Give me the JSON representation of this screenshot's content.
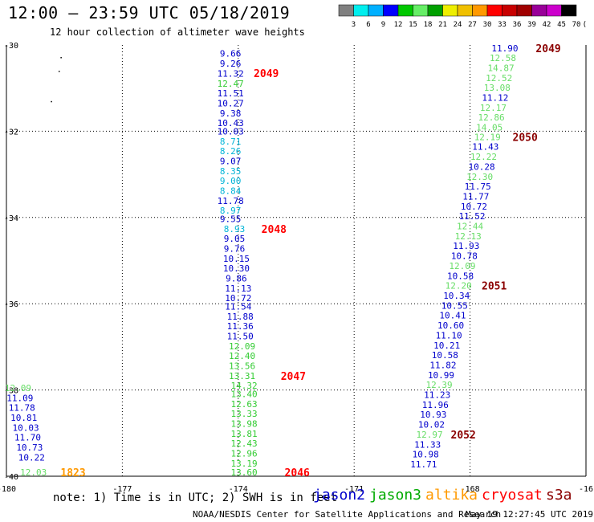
{
  "title": "12:00 – 23:59 UTC 05/18/2019",
  "subtitle": "12 hour collection of altimeter wave heights",
  "scale": {
    "colors": [
      "#808080",
      "#00eeee",
      "#00b0ff",
      "#0000ff",
      "#00c800",
      "#66ee66",
      "#00a000",
      "#eeee00",
      "#f0c000",
      "#ff9900",
      "#ff0000",
      "#c80000",
      "#a00000",
      "#990099",
      "#cc00cc",
      "#000000"
    ],
    "labels": [
      "3",
      "6",
      "9",
      "12",
      "15",
      "18",
      "21",
      "24",
      "27",
      "30",
      "33",
      "36",
      "39",
      "42",
      "45",
      "70",
      "(ft)"
    ]
  },
  "chart_data": {
    "type": "scatter",
    "x_ticks": [
      "-180",
      "-177",
      "-174",
      "-171",
      "-168",
      "-16"
    ],
    "y_ticks": [
      "-30",
      "-32",
      "-34",
      "-36",
      "-38",
      "-40"
    ],
    "xlim": [
      -180,
      -165
    ],
    "ylim": [
      -40,
      -30
    ],
    "grid": true,
    "colors": {
      "jason2": "#0000cc",
      "jason3": "#33cc33",
      "jason3_cyan": "#00b4d8",
      "altika": "#ff9900",
      "cryosat": "#ff0000",
      "s3a": "#8b0000",
      "dark_navy": "#000080"
    },
    "tracks": [
      {
        "time": "2049",
        "time_color": "#ff0000",
        "time_lon": -173.6,
        "time_lat": -30.65,
        "points": [
          {
            "lon": -174.2,
            "lat": -30.2,
            "v": "9.66",
            "c": "#0000cc"
          },
          {
            "lon": -174.2,
            "lat": -30.43,
            "v": "9.26",
            "c": "#0000cc"
          },
          {
            "lon": -174.2,
            "lat": -30.66,
            "v": "11.32",
            "c": "#0000cc"
          },
          {
            "lon": -174.2,
            "lat": -30.89,
            "v": "12.47",
            "c": "#33cc33"
          },
          {
            "lon": -174.2,
            "lat": -31.12,
            "v": "11.51",
            "c": "#0000cc"
          },
          {
            "lon": -174.2,
            "lat": -31.35,
            "v": "10.27",
            "c": "#0000cc"
          },
          {
            "lon": -174.2,
            "lat": -31.58,
            "v": "9.38",
            "c": "#0000cc"
          },
          {
            "lon": -174.2,
            "lat": -31.81,
            "v": "10.43",
            "c": "#0000cc"
          },
          {
            "lon": -174.2,
            "lat": -32.0,
            "v": "10.03",
            "c": "#0000cc"
          },
          {
            "lon": -174.2,
            "lat": -32.23,
            "v": "8.71",
            "c": "#00b4d8"
          },
          {
            "lon": -174.2,
            "lat": -32.46,
            "v": "8.26",
            "c": "#00b4d8"
          },
          {
            "lon": -174.2,
            "lat": -32.69,
            "v": "9.07",
            "c": "#0000cc"
          },
          {
            "lon": -174.2,
            "lat": -32.92,
            "v": "8.35",
            "c": "#00b4d8"
          },
          {
            "lon": -174.2,
            "lat": -33.15,
            "v": "9.00",
            "c": "#00b4d8"
          },
          {
            "lon": -174.2,
            "lat": -33.38,
            "v": "8.84",
            "c": "#00b4d8"
          },
          {
            "lon": -174.2,
            "lat": -33.61,
            "v": "11.78",
            "c": "#0000cc"
          },
          {
            "lon": -174.2,
            "lat": -33.84,
            "v": "8.97",
            "c": "#00b4d8"
          },
          {
            "lon": -174.2,
            "lat": -34.03,
            "v": "9.55",
            "c": "#0000cc"
          }
        ]
      },
      {
        "time": "2048",
        "time_color": "#ff0000",
        "time_lon": -173.4,
        "time_lat": -34.26,
        "points": [
          {
            "lon": -174.1,
            "lat": -34.26,
            "v": "8.93",
            "c": "#00b4d8"
          },
          {
            "lon": -174.1,
            "lat": -34.49,
            "v": "9.05",
            "c": "#0000cc"
          },
          {
            "lon": -174.1,
            "lat": -34.72,
            "v": "9.76",
            "c": "#0000cc"
          },
          {
            "lon": -174.05,
            "lat": -34.95,
            "v": "10.15",
            "c": "#0000cc"
          },
          {
            "lon": -174.05,
            "lat": -35.18,
            "v": "10.30",
            "c": "#0000cc"
          },
          {
            "lon": -174.05,
            "lat": -35.41,
            "v": "9.86",
            "c": "#0000cc"
          },
          {
            "lon": -174.0,
            "lat": -35.64,
            "v": "11.13",
            "c": "#0000cc"
          },
          {
            "lon": -174.0,
            "lat": -35.87,
            "v": "10.72",
            "c": "#0000cc"
          },
          {
            "lon": -174.0,
            "lat": -36.06,
            "v": "11.54",
            "c": "#0000cc"
          },
          {
            "lon": -173.95,
            "lat": -36.29,
            "v": "11.88",
            "c": "#0000cc"
          },
          {
            "lon": -173.95,
            "lat": -36.52,
            "v": "11.36",
            "c": "#0000cc"
          },
          {
            "lon": -173.95,
            "lat": -36.75,
            "v": "11.50",
            "c": "#0000cc"
          },
          {
            "lon": -173.9,
            "lat": -36.98,
            "v": "12.09",
            "c": "#33cc33"
          },
          {
            "lon": -173.9,
            "lat": -37.21,
            "v": "12.40",
            "c": "#33cc33"
          },
          {
            "lon": -173.9,
            "lat": -37.44,
            "v": "13.56",
            "c": "#33cc33"
          }
        ]
      },
      {
        "time": "2047",
        "time_color": "#ff0000",
        "time_lon": -172.9,
        "time_lat": -37.67,
        "points": [
          {
            "lon": -173.9,
            "lat": -37.67,
            "v": "13.31",
            "c": "#33cc33"
          },
          {
            "lon": -173.85,
            "lat": -37.9,
            "v": "14.32",
            "c": "#33cc33"
          },
          {
            "lon": -173.85,
            "lat": -38.09,
            "v": "13.40",
            "c": "#33cc33"
          },
          {
            "lon": -173.85,
            "lat": -38.32,
            "v": "12.63",
            "c": "#33cc33"
          },
          {
            "lon": -173.85,
            "lat": -38.55,
            "v": "13.33",
            "c": "#33cc33"
          },
          {
            "lon": -173.85,
            "lat": -38.78,
            "v": "13.98",
            "c": "#33cc33"
          },
          {
            "lon": -173.85,
            "lat": -39.01,
            "v": "13.81",
            "c": "#33cc33"
          },
          {
            "lon": -173.85,
            "lat": -39.24,
            "v": "12.43",
            "c": "#33cc33"
          },
          {
            "lon": -173.85,
            "lat": -39.47,
            "v": "12.96",
            "c": "#33cc33"
          },
          {
            "lon": -173.85,
            "lat": -39.7,
            "v": "13.19",
            "c": "#33cc33"
          }
        ]
      },
      {
        "time": "2046",
        "time_color": "#ff0000",
        "time_lon": -172.8,
        "time_lat": -39.91,
        "points": [
          {
            "lon": -173.85,
            "lat": -39.91,
            "v": "13.60",
            "c": "#33cc33"
          }
        ]
      },
      {
        "time": "2049",
        "time_color": "#8b0000",
        "time_lon": -166.3,
        "time_lat": -30.07,
        "points": [
          {
            "lon": -167.1,
            "lat": -30.07,
            "v": "11.90",
            "c": "#0000cc"
          },
          {
            "lon": -167.15,
            "lat": -30.3,
            "v": "12.58",
            "c": "#66dd66"
          },
          {
            "lon": -167.2,
            "lat": -30.53,
            "v": "14.87",
            "c": "#66dd66"
          },
          {
            "lon": -167.25,
            "lat": -30.76,
            "v": "12.52",
            "c": "#66dd66"
          },
          {
            "lon": -167.3,
            "lat": -30.99,
            "v": "13.08",
            "c": "#66dd66"
          },
          {
            "lon": -167.35,
            "lat": -31.22,
            "v": "11.12",
            "c": "#0000cc"
          },
          {
            "lon": -167.4,
            "lat": -31.45,
            "v": "12.17",
            "c": "#66dd66"
          },
          {
            "lon": -167.45,
            "lat": -31.68,
            "v": "12.86",
            "c": "#66dd66"
          },
          {
            "lon": -167.5,
            "lat": -31.91,
            "v": "14.05",
            "c": "#66dd66"
          }
        ]
      },
      {
        "time": "2050",
        "time_color": "#8b0000",
        "time_lon": -166.9,
        "time_lat": -32.13,
        "points": [
          {
            "lon": -167.55,
            "lat": -32.13,
            "v": "12.19",
            "c": "#66dd66"
          },
          {
            "lon": -167.6,
            "lat": -32.36,
            "v": "11.43",
            "c": "#0000cc"
          },
          {
            "lon": -167.65,
            "lat": -32.59,
            "v": "12.22",
            "c": "#66dd66"
          },
          {
            "lon": -167.7,
            "lat": -32.82,
            "v": "10.28",
            "c": "#0000cc"
          },
          {
            "lon": -167.75,
            "lat": -33.05,
            "v": "12.30",
            "c": "#66dd66"
          },
          {
            "lon": -167.8,
            "lat": -33.28,
            "v": "11.75",
            "c": "#0000cc"
          },
          {
            "lon": -167.85,
            "lat": -33.51,
            "v": "11.77",
            "c": "#0000cc"
          },
          {
            "lon": -167.9,
            "lat": -33.74,
            "v": "10.72",
            "c": "#0000cc"
          },
          {
            "lon": -167.95,
            "lat": -33.97,
            "v": "11.52",
            "c": "#0000cc"
          },
          {
            "lon": -168.0,
            "lat": -34.2,
            "v": "12.44",
            "c": "#66dd66"
          },
          {
            "lon": -168.05,
            "lat": -34.43,
            "v": "12.13",
            "c": "#66dd66"
          },
          {
            "lon": -168.1,
            "lat": -34.66,
            "v": "11.93",
            "c": "#0000cc"
          },
          {
            "lon": -168.15,
            "lat": -34.89,
            "v": "10.78",
            "c": "#0000cc"
          },
          {
            "lon": -168.2,
            "lat": -35.12,
            "v": "12.09",
            "c": "#66dd66"
          },
          {
            "lon": -168.25,
            "lat": -35.35,
            "v": "10.58",
            "c": "#0000cc"
          }
        ]
      },
      {
        "time": "2051",
        "time_color": "#8b0000",
        "time_lon": -167.7,
        "time_lat": -35.58,
        "points": [
          {
            "lon": -168.3,
            "lat": -35.58,
            "v": "12.20",
            "c": "#66dd66"
          },
          {
            "lon": -168.35,
            "lat": -35.81,
            "v": "10.34",
            "c": "#0000cc"
          },
          {
            "lon": -168.4,
            "lat": -36.04,
            "v": "10.55",
            "c": "#0000cc"
          },
          {
            "lon": -168.45,
            "lat": -36.27,
            "v": "10.41",
            "c": "#0000cc"
          },
          {
            "lon": -168.5,
            "lat": -36.5,
            "v": "10.60",
            "c": "#0000cc"
          },
          {
            "lon": -168.55,
            "lat": -36.73,
            "v": "11.10",
            "c": "#0000cc"
          },
          {
            "lon": -168.6,
            "lat": -36.96,
            "v": "10.21",
            "c": "#0000cc"
          },
          {
            "lon": -168.65,
            "lat": -37.19,
            "v": "10.58",
            "c": "#0000cc"
          },
          {
            "lon": -168.7,
            "lat": -37.42,
            "v": "11.82",
            "c": "#0000cc"
          },
          {
            "lon": -168.75,
            "lat": -37.65,
            "v": "10.99",
            "c": "#0000cc"
          },
          {
            "lon": -168.8,
            "lat": -37.88,
            "v": "12.39",
            "c": "#66dd66"
          },
          {
            "lon": -168.85,
            "lat": -38.11,
            "v": "11.23",
            "c": "#0000cc"
          },
          {
            "lon": -168.9,
            "lat": -38.34,
            "v": "11.96",
            "c": "#0000cc"
          },
          {
            "lon": -168.95,
            "lat": -38.57,
            "v": "10.93",
            "c": "#0000cc"
          },
          {
            "lon": -169.0,
            "lat": -38.8,
            "v": "10.02",
            "c": "#0000cc"
          }
        ]
      },
      {
        "time": "2052",
        "time_color": "#8b0000",
        "time_lon": -168.5,
        "time_lat": -39.03,
        "points": [
          {
            "lon": -169.05,
            "lat": -39.03,
            "v": "12.97",
            "c": "#66dd66"
          },
          {
            "lon": -169.1,
            "lat": -39.26,
            "v": "11.33",
            "c": "#0000cc"
          },
          {
            "lon": -169.15,
            "lat": -39.49,
            "v": "10.98",
            "c": "#0000cc"
          },
          {
            "lon": -169.2,
            "lat": -39.72,
            "v": "11.71",
            "c": "#0000cc"
          }
        ]
      },
      {
        "time": "1823",
        "time_color": "#ff9900",
        "time_lon": -178.6,
        "time_lat": -39.91,
        "points": [
          {
            "lon": -179.7,
            "lat": -37.95,
            "v": "12.09",
            "c": "#66dd66"
          },
          {
            "lon": -179.65,
            "lat": -38.18,
            "v": "11.09",
            "c": "#0000cc"
          },
          {
            "lon": -179.6,
            "lat": -38.41,
            "v": "11.78",
            "c": "#0000cc"
          },
          {
            "lon": -179.55,
            "lat": -38.64,
            "v": "10.81",
            "c": "#0000cc"
          },
          {
            "lon": -179.5,
            "lat": -38.87,
            "v": "10.03",
            "c": "#0000cc"
          },
          {
            "lon": -179.45,
            "lat": -39.1,
            "v": "11.70",
            "c": "#0000cc"
          },
          {
            "lon": -179.4,
            "lat": -39.33,
            "v": "10.73",
            "c": "#0000cc"
          },
          {
            "lon": -179.35,
            "lat": -39.56,
            "v": "10.22",
            "c": "#0000cc"
          },
          {
            "lon": -179.3,
            "lat": -39.91,
            "v": "12.03",
            "c": "#66dd66"
          }
        ]
      }
    ],
    "dots": [
      {
        "lon": -178.6,
        "lat": -30.28
      },
      {
        "lon": -178.65,
        "lat": -30.6
      },
      {
        "lon": -178.85,
        "lat": -31.3
      }
    ]
  },
  "footnote": "note: 1) Time is in UTC; 2) SWH is in feet",
  "legend": {
    "jason2": "jason2",
    "jason3": "jason3",
    "altika": "altika",
    "cryosat": "cryosat",
    "s3a": "s3a"
  },
  "credits": "NOAA/NESDIS Center for Satellite Applications and Research",
  "timestamp": "May 19 12:27:45 UTC 2019"
}
